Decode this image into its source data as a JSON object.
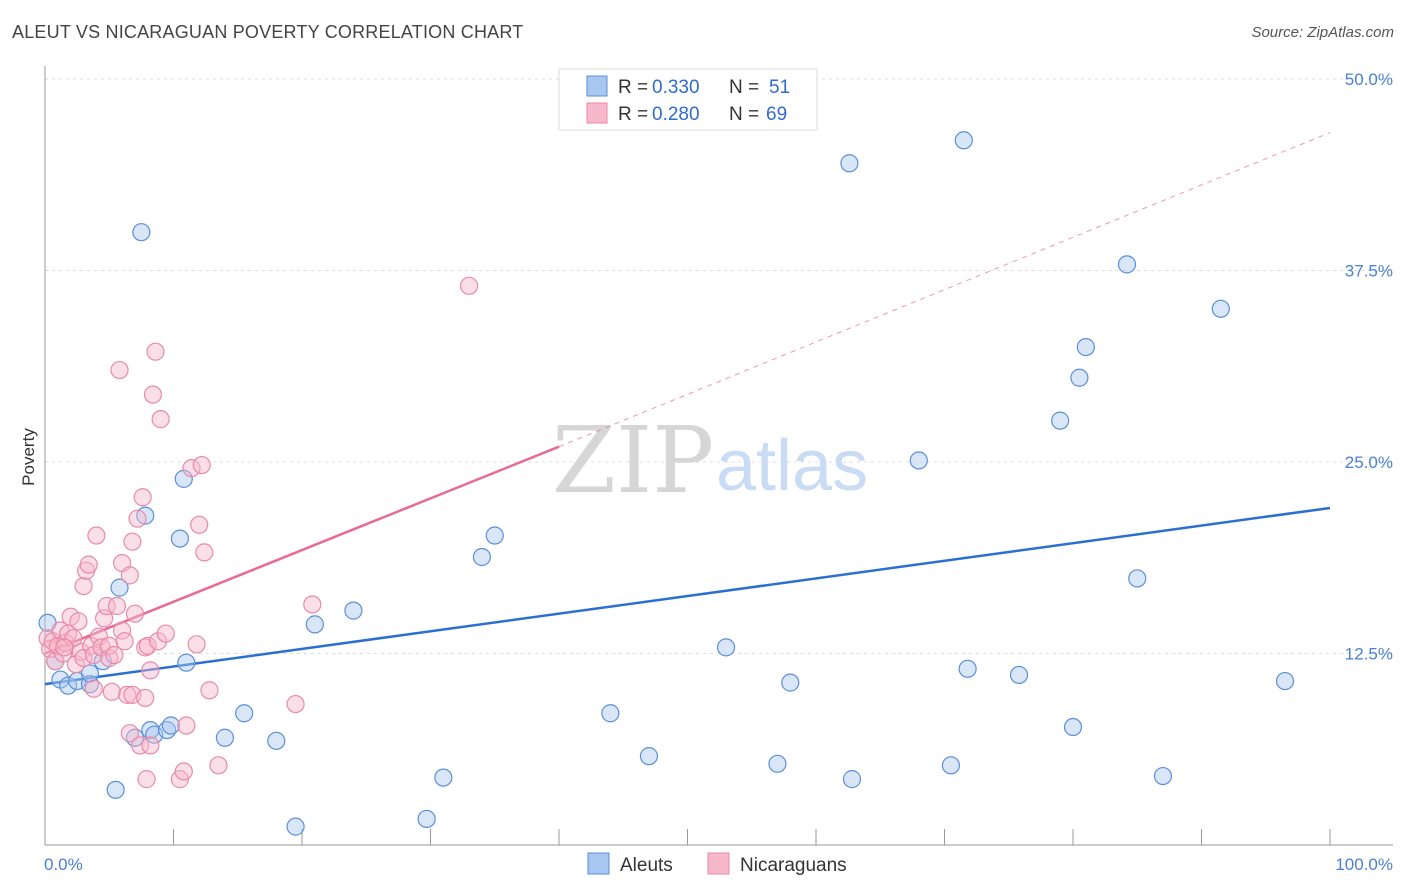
{
  "header": {
    "title": "ALEUT VS NICARAGUAN POVERTY CORRELATION CHART",
    "source": "Source: ZipAtlas.com"
  },
  "watermark": {
    "part1": "ZIP",
    "part2": "atlas"
  },
  "legend": {
    "rows": [
      {
        "r_label": "R = ",
        "r_value": "0.330",
        "n_label": "N = ",
        "n_value": "51",
        "color": "#a8c7f0"
      },
      {
        "r_label": "R = ",
        "r_value": "0.280",
        "n_label": "N = ",
        "n_value": "69",
        "color": "#f7b8cc"
      }
    ]
  },
  "bottom_legend": {
    "items": [
      "Aleuts",
      "Nicaraguans"
    ]
  },
  "chart_data": {
    "type": "scatter",
    "title": "ALEUT VS NICARAGUAN POVERTY CORRELATION CHART",
    "xlabel": "",
    "ylabel": "Poverty",
    "xlim": [
      0,
      100
    ],
    "ylim": [
      0,
      50
    ],
    "x_tick_labels": [
      "0.0%",
      "100.0%"
    ],
    "y_ticks": [
      12.5,
      25,
      37.5,
      50
    ],
    "y_tick_labels": [
      "12.5%",
      "25.0%",
      "37.5%",
      "50.0%"
    ],
    "grid": true,
    "series": [
      {
        "name": "Aleuts",
        "color": "#5b8fd9",
        "fill": "#a8c7f0",
        "trend": {
          "x": [
            0,
            100
          ],
          "y": [
            10.5,
            22.0
          ],
          "color": "#2a6fd1"
        },
        "points": [
          [
            0.2,
            14.5
          ],
          [
            0.8,
            12.0
          ],
          [
            1.2,
            10.8
          ],
          [
            1.8,
            10.4
          ],
          [
            2.5,
            10.7
          ],
          [
            3.5,
            10.5
          ],
          [
            3.5,
            11.2
          ],
          [
            4.5,
            12.0
          ],
          [
            5.5,
            3.6
          ],
          [
            5.8,
            16.8
          ],
          [
            7.0,
            7.0
          ],
          [
            7.5,
            40.0
          ],
          [
            7.8,
            21.5
          ],
          [
            8.2,
            7.5
          ],
          [
            8.5,
            7.2
          ],
          [
            9.5,
            7.5
          ],
          [
            9.8,
            7.8
          ],
          [
            10.5,
            20.0
          ],
          [
            10.8,
            23.9
          ],
          [
            11.0,
            11.9
          ],
          [
            14.0,
            7.0
          ],
          [
            15.5,
            8.6
          ],
          [
            18.0,
            6.8
          ],
          [
            19.5,
            1.2
          ],
          [
            21.0,
            14.4
          ],
          [
            24.0,
            15.3
          ],
          [
            29.7,
            1.7
          ],
          [
            31.0,
            4.4
          ],
          [
            34.0,
            18.8
          ],
          [
            35.0,
            20.2
          ],
          [
            44.0,
            8.6
          ],
          [
            47.0,
            5.8
          ],
          [
            53.0,
            12.9
          ],
          [
            57.0,
            5.3
          ],
          [
            58.0,
            10.6
          ],
          [
            62.6,
            44.5
          ],
          [
            62.8,
            4.3
          ],
          [
            68.0,
            25.1
          ],
          [
            70.5,
            5.2
          ],
          [
            71.5,
            46.0
          ],
          [
            71.8,
            11.5
          ],
          [
            75.8,
            11.1
          ],
          [
            79.0,
            27.7
          ],
          [
            80.0,
            7.7
          ],
          [
            80.5,
            30.5
          ],
          [
            81.0,
            32.5
          ],
          [
            84.2,
            37.9
          ],
          [
            85.0,
            17.4
          ],
          [
            87.0,
            4.5
          ],
          [
            91.5,
            35.0
          ],
          [
            96.5,
            10.7
          ]
        ]
      },
      {
        "name": "Nicaraguans",
        "color": "#e98aa8",
        "fill": "#f7b8cc",
        "trend": {
          "x": [
            0,
            40
          ],
          "y": [
            12.5,
            26.0
          ],
          "color": "#e86a95",
          "dashed_extension": {
            "x": [
              40,
              100
            ],
            "y": [
              26.0,
              46.5
            ]
          }
        },
        "points": [
          [
            0.2,
            13.5
          ],
          [
            0.4,
            12.8
          ],
          [
            0.6,
            13.3
          ],
          [
            0.8,
            12.0
          ],
          [
            1.0,
            13.0
          ],
          [
            1.2,
            14.0
          ],
          [
            1.4,
            12.5
          ],
          [
            1.6,
            13.2
          ],
          [
            1.8,
            13.8
          ],
          [
            2.0,
            14.9
          ],
          [
            2.2,
            13.5
          ],
          [
            2.4,
            11.8
          ],
          [
            2.6,
            14.6
          ],
          [
            2.8,
            12.6
          ],
          [
            3.0,
            12.2
          ],
          [
            3.0,
            16.9
          ],
          [
            3.2,
            17.9
          ],
          [
            3.4,
            18.3
          ],
          [
            3.6,
            13.0
          ],
          [
            3.8,
            10.2
          ],
          [
            3.8,
            12.4
          ],
          [
            4.0,
            20.2
          ],
          [
            4.2,
            13.6
          ],
          [
            4.4,
            12.9
          ],
          [
            4.6,
            14.8
          ],
          [
            4.8,
            15.6
          ],
          [
            5.0,
            12.2
          ],
          [
            5.0,
            13.0
          ],
          [
            5.2,
            10.0
          ],
          [
            5.4,
            12.4
          ],
          [
            5.6,
            15.6
          ],
          [
            5.8,
            31.0
          ],
          [
            6.0,
            18.4
          ],
          [
            6.0,
            14.0
          ],
          [
            6.2,
            13.3
          ],
          [
            6.4,
            9.8
          ],
          [
            6.6,
            17.6
          ],
          [
            6.6,
            7.3
          ],
          [
            6.8,
            19.8
          ],
          [
            6.8,
            9.8
          ],
          [
            7.0,
            15.1
          ],
          [
            7.2,
            21.3
          ],
          [
            7.4,
            6.5
          ],
          [
            7.6,
            22.7
          ],
          [
            7.8,
            9.6
          ],
          [
            7.8,
            12.9
          ],
          [
            7.9,
            4.3
          ],
          [
            8.0,
            13.0
          ],
          [
            8.2,
            6.5
          ],
          [
            8.2,
            11.4
          ],
          [
            8.4,
            29.4
          ],
          [
            8.6,
            32.2
          ],
          [
            8.8,
            13.3
          ],
          [
            9.0,
            27.8
          ],
          [
            9.4,
            13.8
          ],
          [
            10.5,
            4.3
          ],
          [
            10.8,
            4.8
          ],
          [
            11.0,
            7.8
          ],
          [
            11.4,
            24.6
          ],
          [
            11.8,
            13.1
          ],
          [
            12.0,
            20.9
          ],
          [
            12.2,
            24.8
          ],
          [
            12.4,
            19.1
          ],
          [
            12.8,
            10.1
          ],
          [
            13.5,
            5.2
          ],
          [
            19.5,
            9.2
          ],
          [
            20.8,
            15.7
          ],
          [
            33.0,
            36.5
          ],
          [
            1.5,
            12.9
          ]
        ]
      }
    ]
  }
}
